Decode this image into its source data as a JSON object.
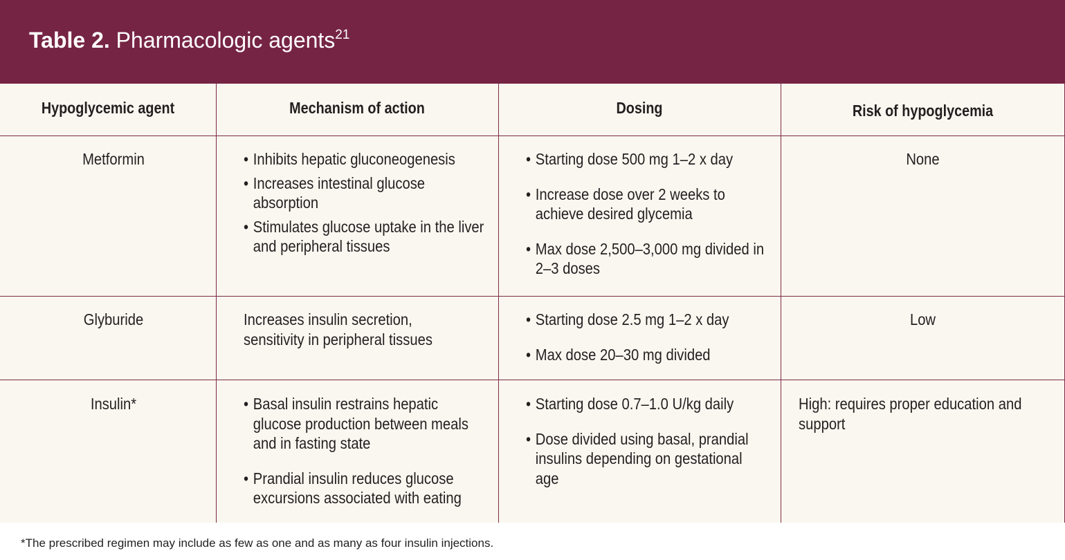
{
  "banner": {
    "label": "Table 2.",
    "title": "Pharmacologic agents",
    "ref": "21",
    "color": "#762444"
  },
  "table": {
    "headers": [
      "Hypoglycemic agent",
      "Mechanism of action",
      "Dosing",
      "Risk of hypoglycemia"
    ],
    "rows": [
      {
        "agent": "Metformin",
        "mechanism": [
          "Inhibits hepatic gluconeogenesis",
          "Increases intestinal glucose absorption",
          "Stimulates glucose uptake in the liver and peripheral tissues"
        ],
        "dosing": [
          "Starting dose 500 mg 1–2 x day",
          "Increase dose over 2 weeks to achieve desired glycemia",
          "Max dose 2,500–3,000 mg divided in 2–3 doses"
        ],
        "risk": "None"
      },
      {
        "agent": "Glyburide",
        "mechanism_text": "Increases insulin secretion, sensitivity in peripheral tissues",
        "dosing": [
          "Starting dose 2.5 mg 1–2 x day",
          "Max dose 20–30 mg divided"
        ],
        "risk": "Low"
      },
      {
        "agent": "Insulin*",
        "mechanism": [
          "Basal insulin restrains hepatic glucose production between meals and in fasting state",
          "Prandial insulin reduces glucose excursions associated with eating"
        ],
        "dosing": [
          "Starting dose 0.7–1.0 U/kg daily",
          "Dose divided using basal, prandial insulins depending on gestational age"
        ],
        "risk": "High: requires proper education and support"
      }
    ]
  },
  "footnote": "*The prescribed regimen may include as few as one and as many as four insulin injections."
}
